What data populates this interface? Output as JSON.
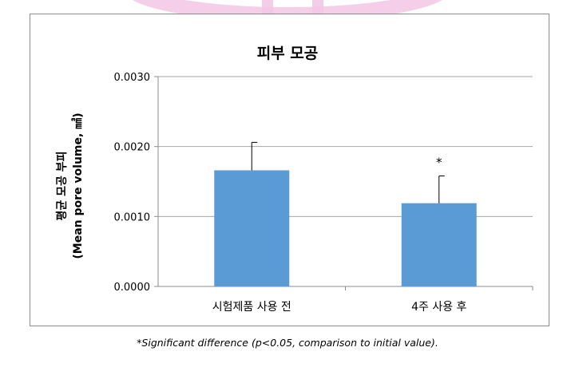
{
  "chart_data": {
    "type": "bar",
    "title": "피부 모공",
    "ylabel_line1": "평균 모공 부피",
    "ylabel_line2": "(Mean pore volume, ㎣)",
    "xlabel": "",
    "categories": [
      "시험제품 사용 전",
      "4주 사용 후"
    ],
    "values": [
      0.00166,
      0.00119
    ],
    "error_upper": [
      0.00206,
      0.00158
    ],
    "significance": [
      "",
      "*"
    ],
    "ylim": [
      0.0,
      0.003
    ],
    "yticks": [
      "0.0000",
      "0.0010",
      "0.0020",
      "0.0030"
    ],
    "grid": true,
    "legend": "none",
    "colors": {
      "bar": "#5b9bd5",
      "grid": "#a6a6a6",
      "axis": "#8c8c8c",
      "watermark": "#f3c6e6"
    }
  },
  "footnote": "*Significant difference (p<0.05, comparison to initial value)."
}
